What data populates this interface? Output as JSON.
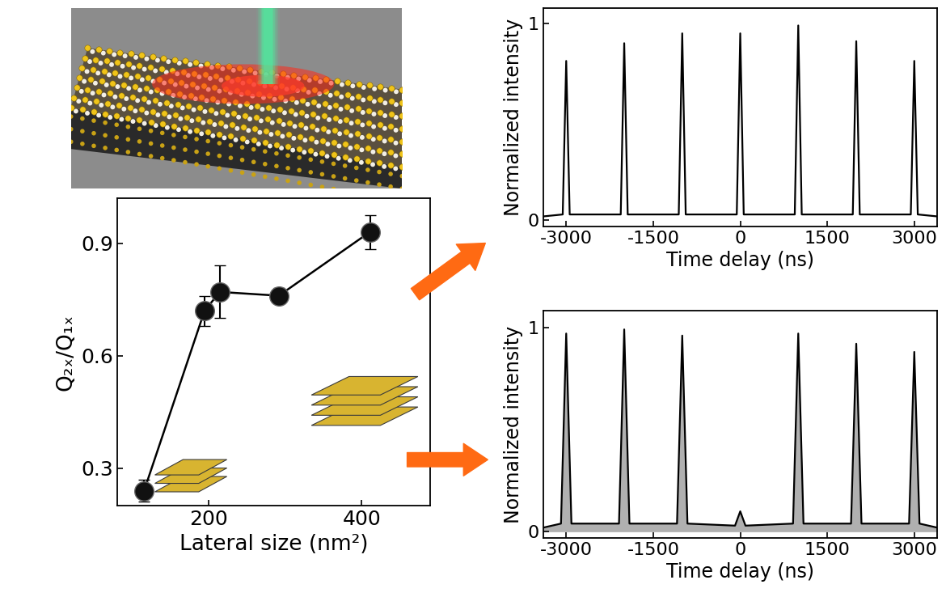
{
  "chart_data": [
    {
      "type": "line",
      "x": [
        116,
        195,
        215,
        292,
        411
      ],
      "values": [
        0.24,
        0.72,
        0.77,
        0.76,
        0.93
      ],
      "errors": [
        0.03,
        0.04,
        0.07,
        0.02,
        0.045
      ],
      "color": "#000000",
      "marker": "o",
      "line_style": "solid",
      "xlabel": "Lateral size (nm²)",
      "ylabel": "Q₂ₓ/Q₁ₓ",
      "xlim": [
        81,
        490
      ],
      "ylim": [
        0.2,
        1.02
      ],
      "xticks": [
        200,
        400
      ],
      "yticks": [
        0.3,
        0.6,
        0.9
      ]
    },
    {
      "type": "line",
      "x": [
        -3400,
        -3060,
        -3000,
        -2940,
        -2060,
        -2000,
        -1940,
        -1060,
        -1000,
        -940,
        -60,
        0,
        60,
        940,
        1000,
        1060,
        1940,
        2000,
        2060,
        2940,
        3000,
        3060,
        3400
      ],
      "values": [
        0.02,
        0.03,
        0.81,
        0.03,
        0.03,
        0.9,
        0.03,
        0.03,
        0.95,
        0.03,
        0.03,
        0.95,
        0.03,
        0.03,
        0.99,
        0.03,
        0.03,
        0.91,
        0.03,
        0.03,
        0.81,
        0.03,
        0.02
      ],
      "color": "#000000",
      "line_style": "solid",
      "xlabel": "Time delay (ns)",
      "ylabel": "Normalized intensity",
      "xlim": [
        -3400,
        3400
      ],
      "ylim": [
        -0.03,
        1.08
      ],
      "xticks": [
        -3000,
        -1500,
        0,
        1500,
        3000
      ],
      "yticks": [
        0,
        1
      ]
    },
    {
      "type": "line",
      "x": [
        -3400,
        -3090,
        -3000,
        -2910,
        -2090,
        -2000,
        -1910,
        -1090,
        -1000,
        -910,
        -90,
        0,
        90,
        910,
        1000,
        1090,
        1910,
        2000,
        2090,
        2910,
        3000,
        3090,
        3400
      ],
      "values": [
        0.02,
        0.04,
        0.97,
        0.04,
        0.04,
        0.99,
        0.04,
        0.04,
        0.96,
        0.04,
        0.03,
        0.1,
        0.03,
        0.04,
        0.97,
        0.04,
        0.04,
        0.92,
        0.04,
        0.04,
        0.88,
        0.04,
        0.02
      ],
      "color": "#000000",
      "line_style": "solid",
      "xlabel": "Time delay (ns)",
      "ylabel": "Normalized intensity",
      "xlim": [
        -3400,
        3400
      ],
      "ylim": [
        -0.03,
        1.08
      ],
      "xticks": [
        -3000,
        -1500,
        0,
        1500,
        3000
      ],
      "yticks": [
        0,
        1
      ]
    }
  ]
}
